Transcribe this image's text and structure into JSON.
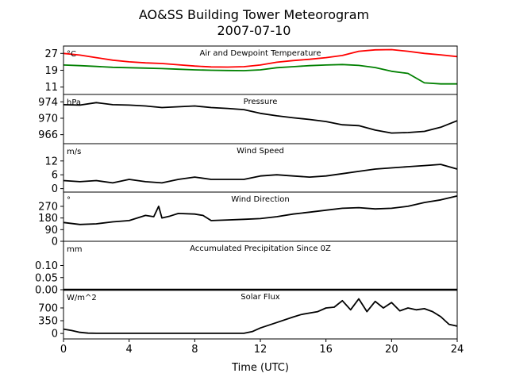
{
  "title_line1": "AO&SS Building Tower Meteorogram",
  "title_line2": "2007-07-10",
  "xlabel": "Time (UTC)",
  "chart_data": {
    "type": "line",
    "x_range": [
      0,
      24
    ],
    "x_ticks": [
      0,
      4,
      8,
      12,
      16,
      20,
      24
    ],
    "x_unit": "hours UTC",
    "panels": [
      {
        "title": "Air and Dewpoint Temperature",
        "unit": "°C",
        "ylim": [
          7.5,
          30.5
        ],
        "yticks": [
          11,
          19,
          27
        ],
        "series": [
          {
            "color": "#ff0000",
            "x": [
              0,
              1,
              2,
              3,
              4,
              5,
              6,
              7,
              8,
              9,
              10,
              11,
              12,
              13,
              14,
              15,
              16,
              17,
              18,
              19,
              20,
              21,
              22,
              23,
              24
            ],
            "y": [
              27,
              26.2,
              25,
              23.8,
              23,
              22.5,
              22.2,
              21.6,
              21,
              20.6,
              20.5,
              20.7,
              21.5,
              22.8,
              23.6,
              24.2,
              25,
              26,
              28,
              28.7,
              28.8,
              28,
              27,
              26.3,
              25.5
            ]
          },
          {
            "color": "#008000",
            "x": [
              0,
              1,
              2,
              3,
              4,
              5,
              6,
              7,
              8,
              9,
              10,
              11,
              12,
              13,
              14,
              15,
              16,
              17,
              18,
              19,
              20,
              21,
              22,
              23,
              24
            ],
            "y": [
              21.5,
              21.2,
              20.8,
              20.4,
              20.2,
              20,
              19.8,
              19.5,
              19.2,
              19,
              18.9,
              18.8,
              19.2,
              20.2,
              20.7,
              21.2,
              21.5,
              21.7,
              21.3,
              20.3,
              18.5,
              17.5,
              13,
              12.5,
              12.5
            ]
          }
        ]
      },
      {
        "title": "Pressure",
        "unit": "hPa",
        "ylim": [
          963.8,
          975.8
        ],
        "yticks": [
          966,
          970,
          974
        ],
        "series": [
          {
            "color": "#000000",
            "x": [
              0,
              1,
              2,
              3,
              4,
              5,
              6,
              7,
              8,
              9,
              10,
              11,
              12,
              13,
              14,
              15,
              16,
              17,
              18,
              19,
              20,
              21,
              22,
              23,
              24
            ],
            "y": [
              973.3,
              973.2,
              973.8,
              973.3,
              973.2,
              973,
              972.6,
              972.8,
              973,
              972.6,
              972.4,
              972.1,
              971.2,
              970.6,
              970.1,
              969.7,
              969.2,
              968.4,
              968.2,
              967.1,
              966.4,
              966.5,
              966.8,
              967.8,
              969.4
            ]
          }
        ]
      },
      {
        "title": "Wind Speed",
        "unit": "m/s",
        "ylim": [
          -1.5,
          19.5
        ],
        "yticks": [
          0,
          6,
          12
        ],
        "series": [
          {
            "color": "#000000",
            "x": [
              0,
              1,
              2,
              3,
              4,
              5,
              6,
              7,
              8,
              9,
              10,
              11,
              12,
              13,
              14,
              15,
              16,
              17,
              18,
              19,
              20,
              21,
              22,
              23,
              24
            ],
            "y": [
              3.5,
              3,
              3.5,
              2.5,
              4,
              3,
              2.5,
              4,
              5,
              4,
              4,
              4,
              5.5,
              6,
              5.5,
              5,
              5.5,
              6.5,
              7.5,
              8.5,
              9,
              9.5,
              10,
              10.5,
              8.5
            ]
          }
        ]
      },
      {
        "title": "Wind Direction",
        "unit": "°",
        "ylim": [
          0,
          380
        ],
        "yticks": [
          0,
          90,
          180,
          270
        ],
        "series": [
          {
            "color": "#000000",
            "x": [
              0,
              1,
              2,
              3,
              4,
              5,
              5.5,
              5.8,
              6,
              6.5,
              7,
              8,
              8.5,
              9,
              10,
              11,
              12,
              13,
              14,
              15,
              16,
              17,
              18,
              19,
              20,
              21,
              22,
              23,
              24
            ],
            "y": [
              145,
              130,
              135,
              150,
              160,
              200,
              190,
              270,
              180,
              195,
              215,
              210,
              200,
              160,
              165,
              170,
              175,
              190,
              210,
              225,
              240,
              255,
              260,
              250,
              255,
              270,
              300,
              320,
              350
            ]
          }
        ]
      },
      {
        "title": "Accumulated Precipitation Since 0Z",
        "unit": "mm",
        "ylim": [
          0,
          0.2
        ],
        "yticks": [
          0.0,
          0.05,
          0.1
        ],
        "ytick_labels": [
          "0.00",
          "0.05",
          "0.10"
        ],
        "series": [
          {
            "color": "#000000",
            "x": [
              0,
              24
            ],
            "y": [
              0,
              0
            ]
          }
        ]
      },
      {
        "title": "Solar Flux",
        "unit": "W/m^2",
        "ylim": [
          -150,
          1200
        ],
        "yticks": [
          0,
          350,
          700
        ],
        "series": [
          {
            "color": "#000000",
            "x": [
              0,
              0.5,
              1,
              1.5,
              2,
              3,
              4,
              6,
              8,
              10,
              11,
              11.5,
              12,
              13,
              14,
              14.5,
              15,
              15.5,
              16,
              16.5,
              17,
              17.5,
              18,
              18.5,
              19,
              19.5,
              20,
              20.5,
              21,
              21.5,
              22,
              22.5,
              23,
              23.5,
              24
            ],
            "y": [
              120,
              80,
              30,
              10,
              5,
              5,
              5,
              5,
              5,
              5,
              5,
              50,
              150,
              300,
              450,
              520,
              560,
              600,
              700,
              720,
              900,
              650,
              950,
              600,
              880,
              700,
              850,
              620,
              700,
              650,
              680,
              600,
              460,
              250,
              200
            ]
          }
        ]
      }
    ]
  }
}
